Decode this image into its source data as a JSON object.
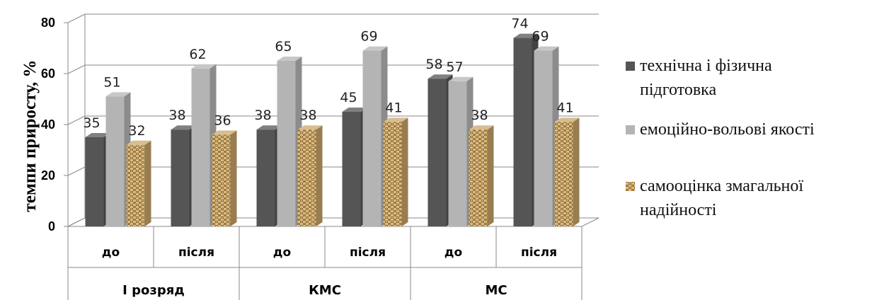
{
  "chart_data": {
    "type": "bar",
    "ylabel": "темпи приросту, %",
    "ylim": [
      0,
      80
    ],
    "yticks": [
      0,
      20,
      40,
      60,
      80
    ],
    "grid": true,
    "legend_position": "right",
    "categories": [
      "до",
      "після",
      "до",
      "після",
      "до",
      "після"
    ],
    "groups": [
      {
        "label": "I розряд",
        "span": 2
      },
      {
        "label": "КМС",
        "span": 2
      },
      {
        "label": "МС",
        "span": 2
      }
    ],
    "series": [
      {
        "name": "технічна і фізична підготовка",
        "legend_lines": [
          "технічна і фізична",
          "підготовка"
        ],
        "color": "#555555",
        "values": [
          35,
          38,
          38,
          45,
          58,
          74
        ]
      },
      {
        "name": "емоційно-вольові якості",
        "legend_lines": [
          "емоційно-вольові якості"
        ],
        "color": "#b4b4b4",
        "values": [
          51,
          62,
          65,
          69,
          57,
          69
        ]
      },
      {
        "name": "самооцінка змагальної надійності",
        "legend_lines": [
          "самооцінка змагальної",
          "надійності"
        ],
        "color": "#c9a76b",
        "pattern": "brick",
        "values": [
          32,
          36,
          38,
          41,
          38,
          41
        ]
      }
    ]
  }
}
